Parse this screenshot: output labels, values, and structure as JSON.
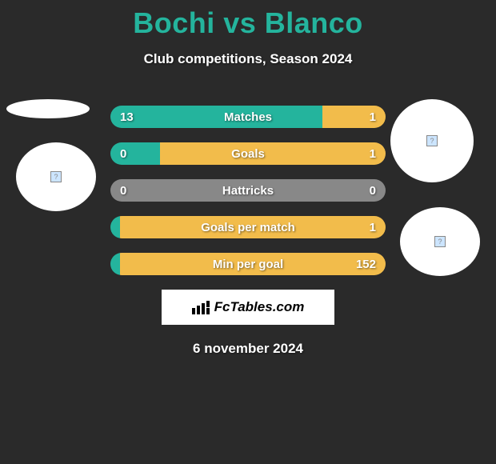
{
  "title": "Bochi vs Blanco",
  "subtitle": "Club competitions, Season 2024",
  "colors": {
    "background": "#2a2a2a",
    "title_color": "#24b49d",
    "text_color": "#ffffff",
    "left_bar": "#24b49d",
    "right_bar": "#f2bc4b",
    "neutral_bar": "#888888"
  },
  "stats": [
    {
      "label": "Matches",
      "left_value": "13",
      "right_value": "1",
      "left_pct": 77,
      "right_pct": 23,
      "left_color": "#24b49d",
      "right_color": "#f2bc4b"
    },
    {
      "label": "Goals",
      "left_value": "0",
      "right_value": "1",
      "left_pct": 18,
      "right_pct": 82,
      "left_color": "#24b49d",
      "right_color": "#f2bc4b"
    },
    {
      "label": "Hattricks",
      "left_value": "0",
      "right_value": "0",
      "left_pct": 100,
      "right_pct": 0,
      "left_color": "#888888",
      "right_color": "#888888"
    },
    {
      "label": "Goals per match",
      "left_value": "",
      "right_value": "1",
      "left_pct": 0,
      "right_pct": 100,
      "left_color": "#24b49d",
      "right_color": "#f2bc4b"
    },
    {
      "label": "Min per goal",
      "left_value": "",
      "right_value": "152",
      "left_pct": 0,
      "right_pct": 100,
      "left_color": "#24b49d",
      "right_color": "#f2bc4b"
    }
  ],
  "logo_text": "FcTables.com",
  "date": "6 november 2024",
  "placeholder_icon": "?"
}
